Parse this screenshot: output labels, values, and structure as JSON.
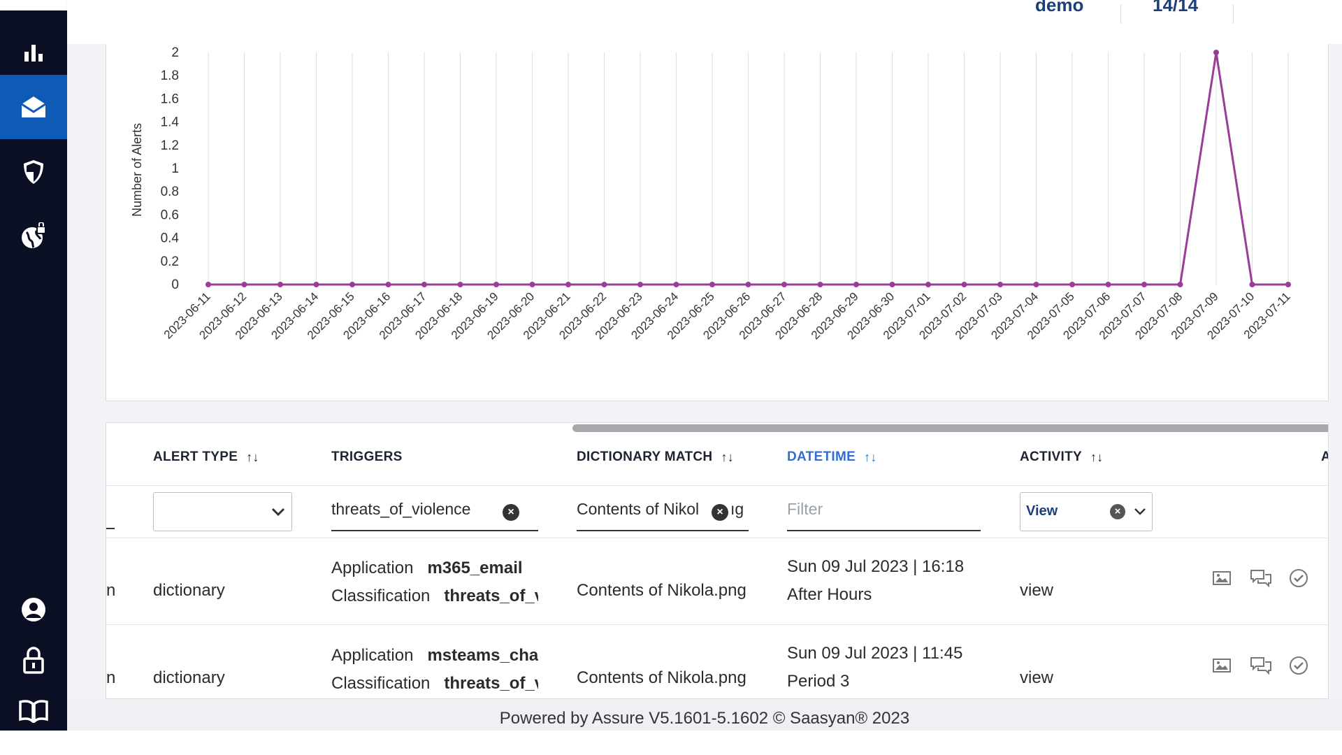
{
  "sidebar": {
    "items": [
      {
        "icon": "bar-chart-icon",
        "active": false
      },
      {
        "icon": "envelope-icon",
        "active": true
      },
      {
        "icon": "shield-icon",
        "active": false
      },
      {
        "icon": "globe-lock-icon",
        "active": false
      }
    ],
    "bottom_items": [
      {
        "icon": "user-icon"
      },
      {
        "icon": "lock-icon"
      },
      {
        "icon": "book-icon"
      }
    ]
  },
  "topbar": {
    "values": [
      "demo",
      "14/14"
    ]
  },
  "chart_data": {
    "type": "line",
    "title": "",
    "xlabel": "",
    "ylabel": "Number of Alerts",
    "ylim": [
      0,
      2
    ],
    "yticks": [
      "2",
      "1.8",
      "1.6",
      "1.4",
      "1.2",
      "1",
      "0.8",
      "0.6",
      "0.4",
      "0.2",
      "0"
    ],
    "grid": "vertical",
    "color": "#9b3c98",
    "categories": [
      "2023-06-11",
      "2023-06-12",
      "2023-06-13",
      "2023-06-14",
      "2023-06-15",
      "2023-06-16",
      "2023-06-17",
      "2023-06-18",
      "2023-06-19",
      "2023-06-20",
      "2023-06-21",
      "2023-06-22",
      "2023-06-23",
      "2023-06-24",
      "2023-06-25",
      "2023-06-26",
      "2023-06-27",
      "2023-06-28",
      "2023-06-29",
      "2023-06-30",
      "2023-07-01",
      "2023-07-02",
      "2023-07-03",
      "2023-07-04",
      "2023-07-05",
      "2023-07-06",
      "2023-07-07",
      "2023-07-08",
      "2023-07-09",
      "2023-07-10",
      "2023-07-11"
    ],
    "values": [
      0,
      0,
      0,
      0,
      0,
      0,
      0,
      0,
      0,
      0,
      0,
      0,
      0,
      0,
      0,
      0,
      0,
      0,
      0,
      0,
      0,
      0,
      0,
      0,
      0,
      0,
      0,
      0,
      2,
      0,
      0
    ]
  },
  "table": {
    "columns": [
      {
        "label": "ALERT TYPE",
        "sortable": true,
        "active": false
      },
      {
        "label": "TRIGGERS",
        "sortable": false,
        "active": false
      },
      {
        "label": "DICTIONARY MATCH",
        "sortable": true,
        "active": false
      },
      {
        "label": "DATETIME",
        "sortable": true,
        "active": true
      },
      {
        "label": "ACTIVITY",
        "sortable": true,
        "active": false
      },
      {
        "label": "A",
        "sortable": false,
        "active": false
      }
    ],
    "filters": {
      "alert_type": "",
      "triggers": "threats_of_violence",
      "dictionary_match": "Contents of Nikol",
      "dictionary_match_tail": "ıg",
      "datetime_placeholder": "Filter",
      "activity": "View"
    },
    "rows": [
      {
        "lead": "n",
        "alert_type": "dictionary",
        "trigger_app_label": "Application",
        "trigger_app": "m365_email",
        "trigger_class_label": "Classification",
        "trigger_class": "threats_of_v",
        "dictionary_match": "Contents of Nikola.png",
        "datetime": "Sun 09 Jul 2023 | 16:18",
        "period": "After Hours",
        "activity": "view"
      },
      {
        "lead": "n",
        "alert_type": "dictionary",
        "trigger_app_label": "Application",
        "trigger_app": "msteams_chat",
        "trigger_class_label": "Classification",
        "trigger_class": "threats_of_v",
        "dictionary_match": "Contents of Nikola.png",
        "datetime": "Sun 09 Jul 2023 | 11:45",
        "period": "Period 3",
        "activity": "view"
      }
    ]
  },
  "footer": {
    "text": "Powered by Assure V5.1601-5.1602 © Saasyan® 2023"
  }
}
